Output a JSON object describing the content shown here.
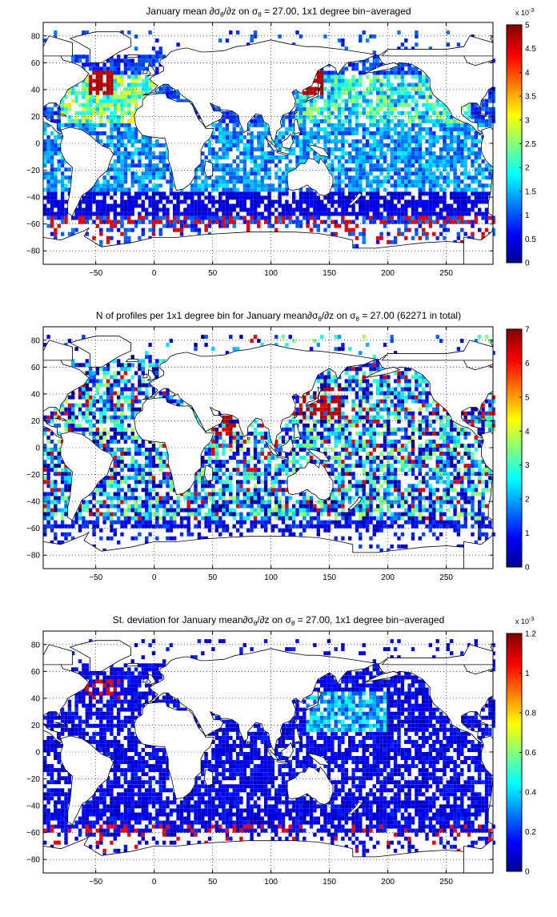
{
  "chart_data": [
    {
      "type": "heatmap",
      "title": "January mean ∂σθ/∂z on σθ = 27.00, 1x1 degree bin−averaged",
      "title_parts": {
        "a": "January mean ∂σ",
        "b": "θ",
        "c": "/∂z on σ",
        "d": "θ",
        "e": " = 27.00, 1x1 degree bin−averaged"
      },
      "xlim": [
        -95,
        290
      ],
      "ylim": [
        -90,
        90
      ],
      "xticks": [
        -50,
        0,
        50,
        100,
        150,
        200,
        250
      ],
      "yticks": [
        80,
        60,
        40,
        20,
        0,
        -20,
        -40,
        -60,
        -80
      ],
      "grid": true,
      "colorbar": {
        "range": [
          0,
          5
        ],
        "ticks": [
          "0",
          "0.5",
          "1",
          "1.5",
          "2",
          "2.5",
          "3",
          "3.5",
          "4",
          "4.5",
          "5"
        ],
        "exponent_base": "x 10",
        "exponent_power": "-3"
      }
    },
    {
      "type": "heatmap",
      "title": "N of profiles per 1x1 degree bin for January mean∂σθ/∂z on σθ = 27.00 (62271 in total)",
      "title_parts": {
        "a": "N of profiles per 1x1 degree bin for January mean∂σ",
        "b": "θ",
        "c": "/∂z on σ",
        "d": "θ",
        "e": " = 27.00 (62271 in total)"
      },
      "xlim": [
        -95,
        290
      ],
      "ylim": [
        -90,
        90
      ],
      "xticks": [
        -50,
        0,
        50,
        100,
        150,
        200,
        250
      ],
      "yticks": [
        80,
        60,
        40,
        20,
        0,
        -20,
        -40,
        -60,
        -80
      ],
      "grid": true,
      "colorbar": {
        "range": [
          0,
          7
        ],
        "ticks": [
          "0",
          "1",
          "2",
          "3",
          "4",
          "5",
          "6",
          "7"
        ],
        "exponent_base": "",
        "exponent_power": ""
      }
    },
    {
      "type": "heatmap",
      "title": "St. deviation for January mean∂σθ/∂z on σθ = 27.00, 1x1 degree bin−averaged",
      "title_parts": {
        "a": "St. deviation for January mean∂σ",
        "b": "θ",
        "c": "/∂z on σ",
        "d": "θ",
        "e": " = 27.00, 1x1 degree bin−averaged"
      },
      "xlim": [
        -95,
        290
      ],
      "ylim": [
        -90,
        90
      ],
      "xticks": [
        -50,
        0,
        50,
        100,
        150,
        200,
        250
      ],
      "yticks": [
        80,
        60,
        40,
        20,
        0,
        -20,
        -40,
        -60,
        -80
      ],
      "grid": true,
      "colorbar": {
        "range": [
          0,
          1.2
        ],
        "ticks": [
          "0",
          "0.2",
          "0.4",
          "0.6",
          "0.8",
          "1",
          "1.2"
        ],
        "exponent_base": "x 10",
        "exponent_power": "-3"
      }
    }
  ]
}
